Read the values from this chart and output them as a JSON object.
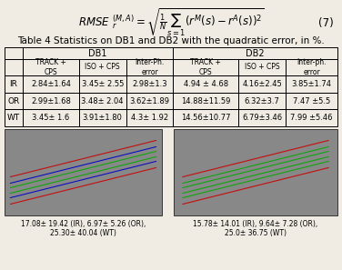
{
  "title_formula": "RMSE",
  "table_title": "Table 4 Statistics on DB1 and DB2 with the quadratic error, in %.",
  "col_headers_db1": [
    "TRACK +\nCPS",
    "ISO + CPS",
    "Inter-Ph.\nerror"
  ],
  "col_headers_db2": [
    "TRACK +\nCPS",
    "ISO + CPS",
    "Inter-ph.\nerror"
  ],
  "row_labels": [
    "IR",
    "OR",
    "WT"
  ],
  "db1_data": [
    [
      "2.84±1.64",
      "3.45± 2.55",
      "2.98±1.3"
    ],
    [
      "2.99±1.68",
      "3.48± 2.04",
      "3.62±1.89"
    ],
    [
      "3.45± 1.6",
      "3.91±1.80",
      "4.3± 1.92"
    ]
  ],
  "db2_data": [
    [
      "4.94 ± 4.68",
      "4.16±2.45",
      "3.85±1.74"
    ],
    [
      "14.88±11.59",
      "6.32±3.7",
      "7.47 ±5.5"
    ],
    [
      "14.56±10.77",
      "6.79±3.46",
      "7.99 ±5.46"
    ]
  ],
  "caption1": "17.08± 19.42 (IR), 6.97± 5.26 (OR),\n25.30± 40.04 (WT)",
  "caption2": "15.78± 14.01 (IR), 9.64± 7.28 (OR),\n25.0± 36.75 (WT)",
  "bg_color": "#f0ece4",
  "text_color": "#000000"
}
